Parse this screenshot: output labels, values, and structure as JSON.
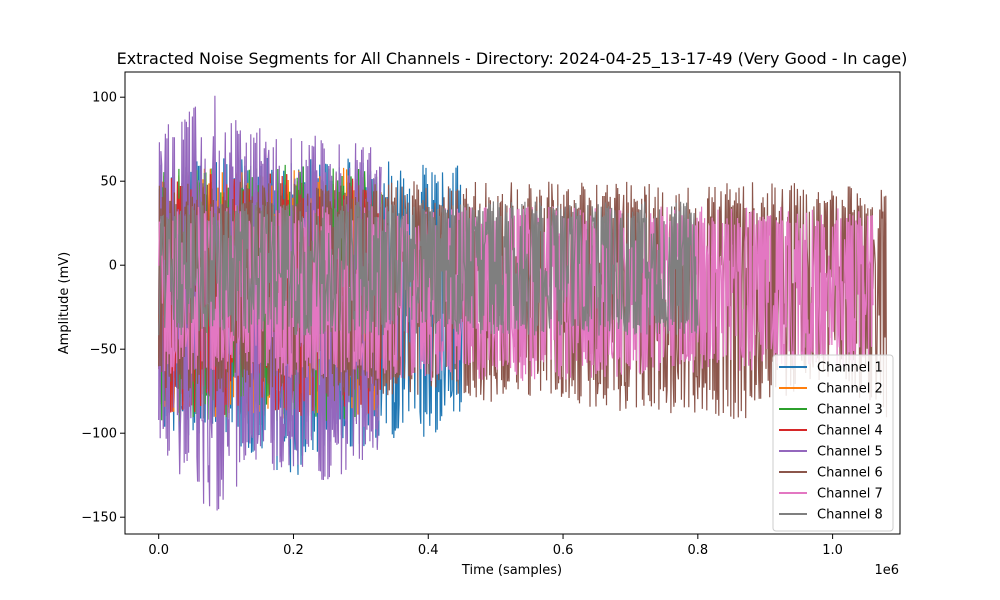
{
  "chart_data": {
    "type": "line",
    "title": "Extracted Noise Segments for All Channels - Directory: 2024-04-25_13-17-49 (Very Good - In cage)",
    "xlabel": "Time (samples)",
    "ylabel": "Amplitude (mV)",
    "x_offset_label": "1e6",
    "xlim": [
      -0.05,
      1.1
    ],
    "ylim": [
      -160,
      115
    ],
    "x_ticks": [
      0.0,
      0.2,
      0.4,
      0.6,
      0.8,
      1.0
    ],
    "x_tick_labels": [
      "0.0",
      "0.2",
      "0.4",
      "0.6",
      "0.8",
      "1.0"
    ],
    "y_ticks": [
      -150,
      -100,
      -50,
      0,
      50,
      100
    ],
    "y_tick_labels": [
      "−150",
      "−100",
      "−50",
      "0",
      "50",
      "100"
    ],
    "grid": false,
    "legend_position": "lower-right",
    "series": [
      {
        "name": "Channel 1",
        "color": "#1f77b4",
        "x_end": 0.45,
        "envelope": [
          {
            "x": 0.0,
            "upper": 62,
            "lower": -100
          },
          {
            "x": 0.1,
            "upper": 64,
            "lower": -105
          },
          {
            "x": 0.2,
            "upper": 64,
            "lower": -128
          },
          {
            "x": 0.3,
            "upper": 64,
            "lower": -110
          },
          {
            "x": 0.4,
            "upper": 64,
            "lower": -105
          },
          {
            "x": 0.45,
            "upper": 63,
            "lower": -88
          }
        ]
      },
      {
        "name": "Channel 2",
        "color": "#ff7f0e",
        "x_end": 0.33,
        "envelope": [
          {
            "x": 0.0,
            "upper": 58,
            "lower": -92
          },
          {
            "x": 0.33,
            "upper": 58,
            "lower": -92
          }
        ]
      },
      {
        "name": "Channel 3",
        "color": "#2ca02c",
        "x_end": 0.33,
        "envelope": [
          {
            "x": 0.0,
            "upper": 60,
            "lower": -95
          },
          {
            "x": 0.33,
            "upper": 60,
            "lower": -95
          }
        ]
      },
      {
        "name": "Channel 4",
        "color": "#d62728",
        "x_end": 0.33,
        "envelope": [
          {
            "x": 0.0,
            "upper": 55,
            "lower": -90
          },
          {
            "x": 0.33,
            "upper": 55,
            "lower": -90
          }
        ]
      },
      {
        "name": "Channel 5",
        "color": "#9467bd",
        "x_end": 0.33,
        "envelope": [
          {
            "x": 0.0,
            "upper": 85,
            "lower": -110
          },
          {
            "x": 0.08,
            "upper": 102,
            "lower": -150
          },
          {
            "x": 0.15,
            "upper": 85,
            "lower": -120
          },
          {
            "x": 0.25,
            "upper": 78,
            "lower": -130
          },
          {
            "x": 0.33,
            "upper": 70,
            "lower": -110
          }
        ]
      },
      {
        "name": "Channel 6",
        "color": "#8c564b",
        "x_end": 1.08,
        "envelope": [
          {
            "x": 0.0,
            "upper": 50,
            "lower": -75
          },
          {
            "x": 0.5,
            "upper": 50,
            "lower": -82
          },
          {
            "x": 0.87,
            "upper": 50,
            "lower": -92
          },
          {
            "x": 1.0,
            "upper": 48,
            "lower": -65
          },
          {
            "x": 1.08,
            "upper": 45,
            "lower": -95
          }
        ]
      },
      {
        "name": "Channel 7",
        "color": "#e377c2",
        "x_end": 1.06,
        "envelope": [
          {
            "x": 0.0,
            "upper": 36,
            "lower": -65
          },
          {
            "x": 0.5,
            "upper": 35,
            "lower": -70
          },
          {
            "x": 0.8,
            "upper": 35,
            "lower": -65
          },
          {
            "x": 1.06,
            "upper": 35,
            "lower": -60
          }
        ]
      },
      {
        "name": "Channel 8",
        "color": "#7f7f7f",
        "x_end": 0.8,
        "envelope": [
          {
            "x": 0.0,
            "upper": 38,
            "lower": -42
          },
          {
            "x": 0.8,
            "upper": 38,
            "lower": -42
          }
        ]
      }
    ]
  }
}
